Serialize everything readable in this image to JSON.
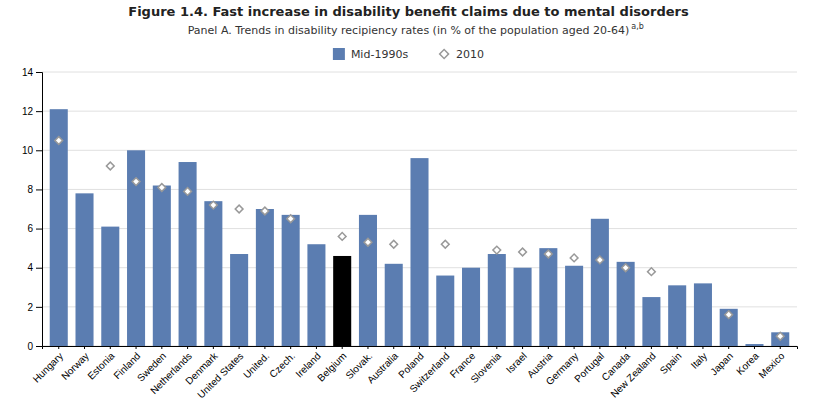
{
  "chart_data": {
    "type": "bar",
    "title": "Figure 1.4. Fast increase in disability benefit claims due to mental disorders",
    "subtitle": "Panel A. Trends in disability recipiency rates (in % of the population aged 20-64)",
    "annotations": [
      "a,b"
    ],
    "categories": [
      "Hungary",
      "Norway",
      "Estonia",
      "Finland",
      "Sweden",
      "Netherlands",
      "Denmark",
      "United States",
      "United.",
      "Czech.",
      "Ireland",
      "Belgium",
      "Slovak.",
      "Australia",
      "Poland",
      "Switzerland",
      "France",
      "Slovenia",
      "Israel",
      "Austria",
      "Germany",
      "Portugal",
      "Canada",
      "New Zealand",
      "Spain",
      "Italy",
      "Japan",
      "Korea",
      "Mexico"
    ],
    "series": [
      {
        "name": "Mid-1990s",
        "type": "bar",
        "color": "#5B7DB1",
        "colors": [
          "#5B7DB1",
          "#5B7DB1",
          "#5B7DB1",
          "#5B7DB1",
          "#5B7DB1",
          "#5B7DB1",
          "#5B7DB1",
          "#5B7DB1",
          "#5B7DB1",
          "#5B7DB1",
          "#5B7DB1",
          "#000000",
          "#5B7DB1",
          "#5B7DB1",
          "#5B7DB1",
          "#5B7DB1",
          "#5B7DB1",
          "#5B7DB1",
          "#5B7DB1",
          "#5B7DB1",
          "#5B7DB1",
          "#5B7DB1",
          "#5B7DB1",
          "#5B7DB1",
          "#5B7DB1",
          "#5B7DB1",
          "#5B7DB1",
          "#5B7DB1",
          "#5B7DB1"
        ],
        "values": [
          12.1,
          7.8,
          6.1,
          10.0,
          8.2,
          9.4,
          7.4,
          4.7,
          7.0,
          6.7,
          5.2,
          4.6,
          6.7,
          4.2,
          9.6,
          3.6,
          4.0,
          4.7,
          4.0,
          5.0,
          4.1,
          6.5,
          4.3,
          2.5,
          3.1,
          3.2,
          1.9,
          0.1,
          0.7
        ]
      },
      {
        "name": "2010",
        "type": "scatter",
        "marker": "diamond",
        "color": "#999999",
        "values": [
          10.5,
          null,
          9.2,
          8.4,
          8.1,
          7.9,
          7.2,
          7.0,
          6.9,
          6.5,
          null,
          5.6,
          5.3,
          5.2,
          null,
          5.2,
          null,
          4.9,
          4.8,
          4.7,
          4.5,
          4.4,
          4.0,
          3.8,
          null,
          null,
          1.6,
          null,
          0.5
        ]
      }
    ],
    "ylim": [
      0,
      14
    ],
    "yticks": [
      0,
      2,
      4,
      6,
      8,
      10,
      12,
      14
    ],
    "grid": true,
    "legend": "top"
  }
}
